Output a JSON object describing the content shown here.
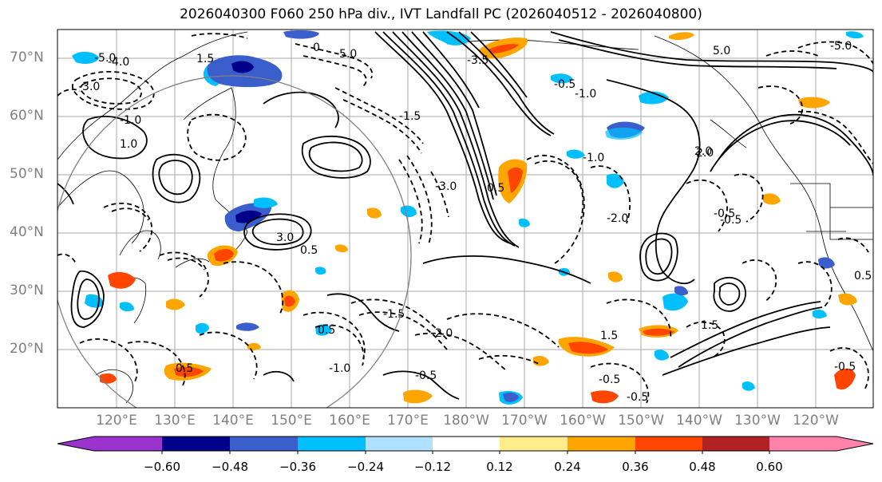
{
  "title": "2026040300 F060 250 hPa div., IVT Landfall PC (2026040512 - 2026040800)",
  "lat_labels": [
    "70°N",
    "60°N",
    "50°N",
    "40°N",
    "30°N",
    "20°N"
  ],
  "lon_labels": [
    "120°E",
    "130°E",
    "140°E",
    "150°E",
    "160°E",
    "170°E",
    "180°W",
    "170°W",
    "160°W",
    "150°W",
    "140°W",
    "130°W",
    "120°W"
  ],
  "colorbar": {
    "ticks": [
      "−0.60",
      "−0.48",
      "−0.36",
      "−0.24",
      "−0.12",
      "0.12",
      "0.24",
      "0.36",
      "0.48",
      "0.60"
    ],
    "colors": [
      "#9a32cd",
      "#00008b",
      "#3a5fcd",
      "#00bfff",
      "#b0e2ff",
      "#ffffff",
      "#ffec8b",
      "#ffa500",
      "#ff4500",
      "#b22222",
      "#ff82ab"
    ]
  },
  "contour_labels": [
    "-5.0",
    "-4.0",
    "-3.0",
    "1.5",
    "0",
    "-1.0",
    "-3.0",
    "0.5",
    "5.0",
    "-0.5",
    "3.0",
    "-3.5",
    "-1.5",
    "-2.0",
    "1.0",
    "-0.5",
    "0.5",
    "-1.5",
    "2.0",
    "-1.0",
    "0.5",
    "-2.0",
    "-1.0",
    "-0.5",
    "1.5",
    "-0.5",
    "-0.5",
    "5.0",
    "2.0",
    "-0.5",
    "1.5",
    "-1.0",
    "-5.0",
    "0.5",
    "-0.5",
    "0.5"
  ]
}
